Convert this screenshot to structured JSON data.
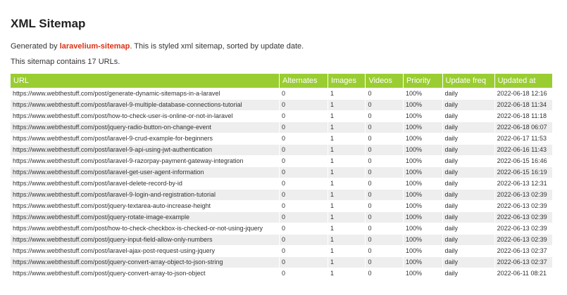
{
  "page": {
    "title": "XML Sitemap",
    "intro_prefix": "Generated by ",
    "intro_link": "laravelium-sitemap",
    "intro_suffix": ". This is styled xml sitemap, sorted by update date.",
    "count_text": "This sitemap contains 17 URLs."
  },
  "colors": {
    "header_bg": "#9acd32",
    "link_accent": "#da3114",
    "row_alt": "#eeeeee"
  },
  "table": {
    "headers": [
      "URL",
      "Alternates",
      "Images",
      "Videos",
      "Priority",
      "Update freq",
      "Updated at"
    ],
    "rows": [
      {
        "url": "https://www.webthestuff.com/post/generate-dynamic-sitemaps-in-a-laravel",
        "alternates": "0",
        "images": "1",
        "videos": "0",
        "priority": "100%",
        "freq": "daily",
        "updated": "2022-06-18 12:16"
      },
      {
        "url": "https://www.webthestuff.com/post/laravel-9-multiple-database-connections-tutorial",
        "alternates": "0",
        "images": "1",
        "videos": "0",
        "priority": "100%",
        "freq": "daily",
        "updated": "2022-06-18 11:34"
      },
      {
        "url": "https://www.webthestuff.com/post/how-to-check-user-is-online-or-not-in-laravel",
        "alternates": "0",
        "images": "1",
        "videos": "0",
        "priority": "100%",
        "freq": "daily",
        "updated": "2022-06-18 11:18"
      },
      {
        "url": "https://www.webthestuff.com/post/jquery-radio-button-on-change-event",
        "alternates": "0",
        "images": "1",
        "videos": "0",
        "priority": "100%",
        "freq": "daily",
        "updated": "2022-06-18 06:07"
      },
      {
        "url": "https://www.webthestuff.com/post/laravel-9-crud-example-for-beginners",
        "alternates": "0",
        "images": "1",
        "videos": "0",
        "priority": "100%",
        "freq": "daily",
        "updated": "2022-06-17 11:53"
      },
      {
        "url": "https://www.webthestuff.com/post/laravel-9-api-using-jwt-authentication",
        "alternates": "0",
        "images": "1",
        "videos": "0",
        "priority": "100%",
        "freq": "daily",
        "updated": "2022-06-16 11:43"
      },
      {
        "url": "https://www.webthestuff.com/post/laravel-9-razorpay-payment-gateway-integration",
        "alternates": "0",
        "images": "1",
        "videos": "0",
        "priority": "100%",
        "freq": "daily",
        "updated": "2022-06-15 16:46"
      },
      {
        "url": "https://www.webthestuff.com/post/laravel-get-user-agent-information",
        "alternates": "0",
        "images": "1",
        "videos": "0",
        "priority": "100%",
        "freq": "daily",
        "updated": "2022-06-15 16:19"
      },
      {
        "url": "https://www.webthestuff.com/post/laravel-delete-record-by-id",
        "alternates": "0",
        "images": "1",
        "videos": "0",
        "priority": "100%",
        "freq": "daily",
        "updated": "2022-06-13 12:31"
      },
      {
        "url": "https://www.webthestuff.com/post/laravel-9-login-and-registration-tutorial",
        "alternates": "0",
        "images": "1",
        "videos": "0",
        "priority": "100%",
        "freq": "daily",
        "updated": "2022-06-13 02:39"
      },
      {
        "url": "https://www.webthestuff.com/post/jquery-textarea-auto-increase-height",
        "alternates": "0",
        "images": "1",
        "videos": "0",
        "priority": "100%",
        "freq": "daily",
        "updated": "2022-06-13 02:39"
      },
      {
        "url": "https://www.webthestuff.com/post/jquery-rotate-image-example",
        "alternates": "0",
        "images": "1",
        "videos": "0",
        "priority": "100%",
        "freq": "daily",
        "updated": "2022-06-13 02:39"
      },
      {
        "url": "https://www.webthestuff.com/post/how-to-check-checkbox-is-checked-or-not-using-jquery",
        "alternates": "0",
        "images": "1",
        "videos": "0",
        "priority": "100%",
        "freq": "daily",
        "updated": "2022-06-13 02:39"
      },
      {
        "url": "https://www.webthestuff.com/post/jquery-input-field-allow-only-numbers",
        "alternates": "0",
        "images": "1",
        "videos": "0",
        "priority": "100%",
        "freq": "daily",
        "updated": "2022-06-13 02:39"
      },
      {
        "url": "https://www.webthestuff.com/post/laravel-ajax-post-request-using-jquery",
        "alternates": "0",
        "images": "1",
        "videos": "0",
        "priority": "100%",
        "freq": "daily",
        "updated": "2022-06-13 02:37"
      },
      {
        "url": "https://www.webthestuff.com/post/jquery-convert-array-object-to-json-string",
        "alternates": "0",
        "images": "1",
        "videos": "0",
        "priority": "100%",
        "freq": "daily",
        "updated": "2022-06-13 02:37"
      },
      {
        "url": "https://www.webthestuff.com/post/jquery-convert-array-to-json-object",
        "alternates": "0",
        "images": "1",
        "videos": "0",
        "priority": "100%",
        "freq": "daily",
        "updated": "2022-06-11 08:21"
      }
    ]
  }
}
